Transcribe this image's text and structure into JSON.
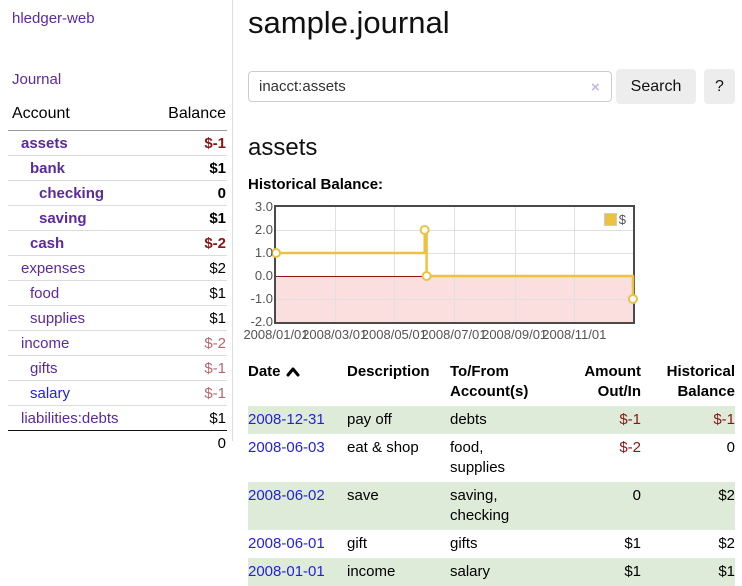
{
  "colors": {
    "accent_purple": "#5b2a9e",
    "link_blue": "#2222dd",
    "negative_strong": "#8b1515",
    "negative_muted": "#b26a6e",
    "row_green": "#deebd8",
    "series_gold": "#edc240"
  },
  "app": {
    "title": "hledger-web",
    "journal_link": "Journal"
  },
  "sidebar": {
    "account_header": "Account",
    "balance_header": "Balance",
    "accounts": [
      {
        "name": "assets",
        "level": 0,
        "bold": true,
        "balance": "$-1"
      },
      {
        "name": "bank",
        "level": 1,
        "bold": true,
        "balance": "$1"
      },
      {
        "name": "checking",
        "level": 2,
        "bold": true,
        "balance": "0"
      },
      {
        "name": "saving",
        "level": 2,
        "bold": true,
        "balance": "$1"
      },
      {
        "name": "cash",
        "level": 1,
        "bold": true,
        "balance": "$-2"
      },
      {
        "name": "expenses",
        "level": 0,
        "bold": false,
        "balance": "$2"
      },
      {
        "name": "food",
        "level": 1,
        "bold": false,
        "balance": "$1"
      },
      {
        "name": "supplies",
        "level": 1,
        "bold": false,
        "balance": "$1"
      },
      {
        "name": "income",
        "level": 0,
        "bold": false,
        "balance": "$-2"
      },
      {
        "name": "gifts",
        "level": 1,
        "bold": false,
        "balance": "$-1"
      },
      {
        "name": "salary",
        "level": 1,
        "bold": false,
        "balance": "$-1",
        "link_color": "blue"
      },
      {
        "name": "liabilities:debts",
        "level": 0,
        "bold": false,
        "balance": "$1"
      }
    ],
    "total": "0"
  },
  "header": {
    "title": "sample.journal"
  },
  "search": {
    "value": "inacct:assets",
    "clear_icon": "×",
    "search_button": "Search",
    "help_button": "?"
  },
  "account_page": {
    "heading": "assets",
    "chart_title": "Historical Balance:"
  },
  "chart_data": {
    "type": "line",
    "step": true,
    "title": "Historical Balance:",
    "legend": {
      "label": "$",
      "position": "top-right"
    },
    "series": [
      {
        "name": "$",
        "points": [
          {
            "date": "2008-01-01",
            "day": 0,
            "value": 1
          },
          {
            "date": "2008-06-01",
            "day": 152,
            "value": 2
          },
          {
            "date": "2008-06-03",
            "day": 154,
            "value": 0
          },
          {
            "date": "2008-12-31",
            "day": 365,
            "value": -1
          }
        ]
      }
    ],
    "x_ticks": [
      {
        "label": "2008/01/01",
        "day": 0
      },
      {
        "label": "2008/03/01",
        "day": 60
      },
      {
        "label": "2008/05/01",
        "day": 121
      },
      {
        "label": "2008/07/01",
        "day": 182
      },
      {
        "label": "2008/09/01",
        "day": 244
      },
      {
        "label": "2008/11/01",
        "day": 305
      }
    ],
    "y_ticks": [
      {
        "label": "3.0",
        "value": 3
      },
      {
        "label": "2.0",
        "value": 2
      },
      {
        "label": "1.0",
        "value": 1
      },
      {
        "label": "0.0",
        "value": 0
      },
      {
        "label": "-1.0",
        "value": -1
      },
      {
        "label": "-2.0",
        "value": -2
      }
    ],
    "ylim": [
      -2,
      3
    ],
    "xlim_days": [
      0,
      365
    ],
    "line_color": "#edc240",
    "negative_region_fill": "#fbdede",
    "zero_line_color": "#8b1717",
    "grid": true
  },
  "register": {
    "columns": [
      {
        "label": "Date",
        "align": "left",
        "sorted": "asc"
      },
      {
        "label": "Description",
        "align": "left"
      },
      {
        "label": "To/From Account(s)",
        "align": "left"
      },
      {
        "label": "Amount Out/In",
        "align": "right"
      },
      {
        "label": "Historical Balance",
        "align": "right"
      }
    ],
    "rows": [
      {
        "date": "2008-12-31",
        "description": "pay off",
        "accounts": "debts",
        "amount": "$-1",
        "balance": "$-1"
      },
      {
        "date": "2008-06-03",
        "description": "eat & shop",
        "accounts": "food, supplies",
        "amount": "$-2",
        "balance": "0"
      },
      {
        "date": "2008-06-02",
        "description": "save",
        "accounts": "saving, checking",
        "amount": "0",
        "balance": "$2"
      },
      {
        "date": "2008-06-01",
        "description": "gift",
        "accounts": "gifts",
        "amount": "$1",
        "balance": "$2"
      },
      {
        "date": "2008-01-01",
        "description": "income",
        "accounts": "salary",
        "amount": "$1",
        "balance": "$1"
      }
    ]
  }
}
